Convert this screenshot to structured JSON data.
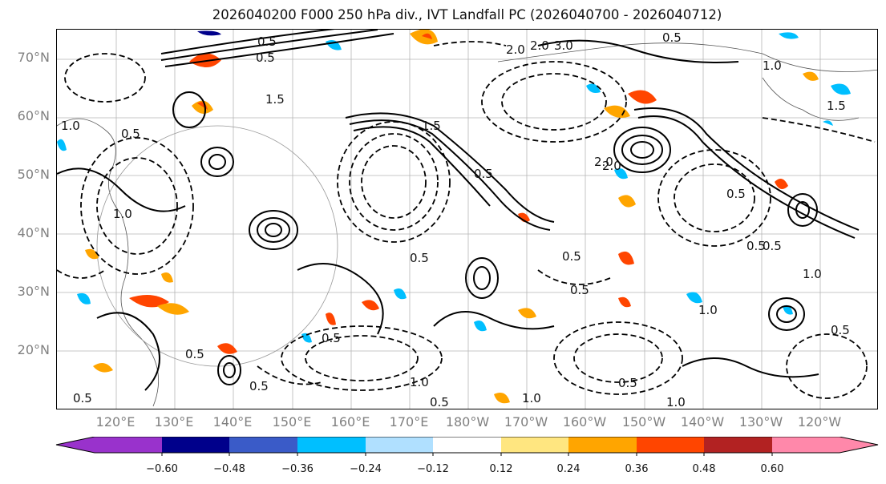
{
  "title": "2026040200 F000 250 hPa div., IVT Landfall PC (2026040700 - 2026040712)",
  "lat_labels": [
    "70°N",
    "60°N",
    "50°N",
    "40°N",
    "30°N",
    "20°N"
  ],
  "lon_labels": [
    "120°E",
    "130°E",
    "140°E",
    "150°E",
    "160°E",
    "170°E",
    "180°W",
    "170°W",
    "160°W",
    "150°W",
    "140°W",
    "130°W",
    "120°W"
  ],
  "colorbar": {
    "colors": [
      "#9932CC",
      "#00008B",
      "#3A5BC8",
      "#00BFFF",
      "#B0E0FF",
      "#FFFFFF",
      "#FFE680",
      "#FFA500",
      "#FF4500",
      "#B22222",
      "#FF88AA"
    ],
    "tick_labels": [
      "−0.60",
      "−0.48",
      "−0.36",
      "−0.24",
      "−0.12",
      "0.12",
      "0.24",
      "0.36",
      "0.48",
      "0.60"
    ]
  },
  "contour_labels": [
    "0.5",
    "1.0",
    "1.5",
    "2.0",
    "0.5",
    "1.5",
    "2.0",
    "0.5",
    "1.0",
    "0.5",
    "0.5",
    "1.0",
    "0.5",
    "0.5",
    "1.0",
    "0.5",
    "0.5",
    "0.5",
    "0.5",
    "1.0",
    "0.5",
    "2.0",
    "2.0",
    "3.0",
    "0.5",
    "1.5",
    "1.0",
    "0.5",
    "1.0",
    "0.5",
    "0.5",
    "1.0",
    "0.5",
    "0.5"
  ]
}
